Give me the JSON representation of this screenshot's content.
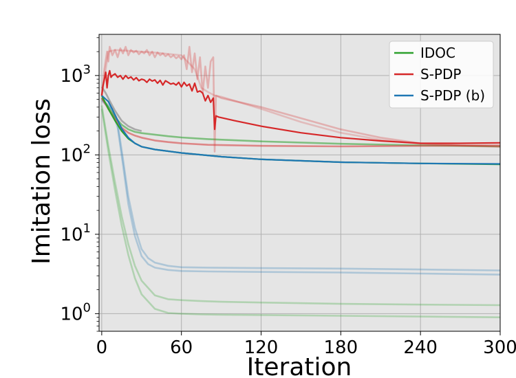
{
  "chart_data": {
    "type": "line",
    "title": "",
    "xlabel": "Iteration",
    "ylabel": "Imitation loss",
    "xlim": [
      -2,
      300
    ],
    "ylim": [
      0.6,
      3300
    ],
    "yscale": "log",
    "grid": true,
    "legend_placement": "top-right",
    "xticks": [
      {
        "value": 0,
        "label": "0"
      },
      {
        "value": 60,
        "label": "60"
      },
      {
        "value": 120,
        "label": "120"
      },
      {
        "value": 180,
        "label": "180"
      },
      {
        "value": 240,
        "label": "240"
      },
      {
        "value": 300,
        "label": "300"
      }
    ],
    "yticks": [
      {
        "value": 1,
        "base": "10",
        "exp": "0"
      },
      {
        "value": 10,
        "base": "10",
        "exp": "1"
      },
      {
        "value": 100,
        "base": "10",
        "exp": "2"
      },
      {
        "value": 1000,
        "base": "10",
        "exp": "3"
      }
    ],
    "legend": [
      {
        "label": "IDOC",
        "color": "#2ca02c"
      },
      {
        "label": "S-PDP",
        "color": "#d62728"
      },
      {
        "label": "S-PDP (b)",
        "color": "#1f77b4"
      }
    ],
    "series": [
      {
        "name": "IDOC",
        "color": "#2ca02c",
        "opacity": 1.0,
        "x": [
          0,
          5,
          10,
          15,
          20,
          25,
          30,
          40,
          60,
          90,
          120,
          180,
          240,
          300
        ],
        "y": [
          560,
          380,
          270,
          200,
          160,
          140,
          127,
          117,
          106,
          95,
          88,
          81,
          78,
          76
        ]
      },
      {
        "name": "S-PDP (b)",
        "color": "#1f77b4",
        "opacity": 1.0,
        "x": [
          0,
          5,
          10,
          15,
          20,
          25,
          30,
          40,
          60,
          90,
          120,
          180,
          240,
          300
        ],
        "y": [
          560,
          470,
          320,
          215,
          165,
          140,
          127,
          117,
          106,
          95,
          88,
          81,
          78,
          77
        ]
      },
      {
        "name": "S-PDP",
        "color": "#d62728",
        "opacity": 1.0,
        "x": [
          0,
          1,
          2,
          3,
          4,
          5,
          6,
          7,
          8,
          10,
          12,
          14,
          16,
          18,
          20,
          22,
          24,
          26,
          28,
          30,
          32,
          34,
          36,
          38,
          40,
          42,
          44,
          46,
          48,
          50,
          52,
          54,
          56,
          58,
          60,
          62,
          64,
          66,
          68,
          70,
          72,
          74,
          76,
          78,
          80,
          82,
          84,
          85,
          86,
          88,
          100,
          120,
          150,
          180,
          210,
          240,
          270,
          300
        ],
        "y": [
          560,
          750,
          900,
          1100,
          700,
          1000,
          1150,
          950,
          1000,
          1050,
          950,
          1000,
          900,
          1000,
          920,
          960,
          880,
          940,
          860,
          900,
          880,
          820,
          900,
          850,
          880,
          800,
          870,
          760,
          860,
          820,
          780,
          800,
          760,
          820,
          720,
          820,
          740,
          780,
          640,
          800,
          620,
          640,
          600,
          480,
          560,
          460,
          520,
          210,
          310,
          300,
          270,
          230,
          190,
          165,
          150,
          140,
          140,
          142
        ]
      },
      {
        "color": "#2ca02c",
        "opacity": 0.28,
        "x": [
          0,
          5,
          10,
          15,
          20,
          25,
          30,
          40,
          50,
          60,
          75,
          90,
          120,
          180,
          240,
          300
        ],
        "y": [
          420,
          130,
          45,
          17,
          7.5,
          4.0,
          2.6,
          1.7,
          1.52,
          1.48,
          1.44,
          1.41,
          1.38,
          1.33,
          1.3,
          1.28
        ]
      },
      {
        "color": "#2ca02c",
        "opacity": 0.28,
        "x": [
          0,
          5,
          10,
          15,
          20,
          25,
          30,
          40,
          50,
          60,
          75,
          90,
          120,
          180,
          240,
          300
        ],
        "y": [
          380,
          110,
          36,
          13,
          5.5,
          2.8,
          1.75,
          1.15,
          1.02,
          1.0,
          0.98,
          0.97,
          0.96,
          0.94,
          0.92,
          0.9
        ]
      },
      {
        "color": "#1f77b4",
        "opacity": 0.28,
        "x": [
          0,
          8,
          12,
          16,
          20,
          25,
          30,
          35,
          40,
          50,
          60,
          80,
          120,
          180,
          240,
          300
        ],
        "y": [
          500,
          380,
          250,
          90,
          30,
          12,
          6.5,
          5.0,
          4.4,
          4.0,
          3.85,
          3.8,
          3.75,
          3.7,
          3.6,
          3.5
        ]
      },
      {
        "color": "#1f77b4",
        "opacity": 0.28,
        "x": [
          0,
          8,
          12,
          16,
          20,
          25,
          30,
          35,
          40,
          50,
          60,
          80,
          120,
          180,
          240,
          300
        ],
        "y": [
          480,
          360,
          220,
          75,
          24,
          9.5,
          5.3,
          4.2,
          3.8,
          3.55,
          3.45,
          3.4,
          3.35,
          3.3,
          3.2,
          3.1
        ]
      },
      {
        "color": "#2ca02c",
        "opacity": 0.55,
        "x": [
          0,
          5,
          10,
          15,
          20,
          25,
          30,
          40,
          50,
          60,
          80,
          120,
          180,
          240,
          300
        ],
        "y": [
          520,
          400,
          300,
          240,
          210,
          195,
          188,
          180,
          172,
          166,
          158,
          148,
          138,
          132,
          128
        ]
      },
      {
        "color": "#d62728",
        "opacity": 0.5,
        "x": [
          0,
          5,
          10,
          15,
          20,
          25,
          30,
          40,
          50,
          60,
          80,
          120,
          180,
          240,
          300
        ],
        "y": [
          520,
          380,
          280,
          220,
          190,
          175,
          165,
          152,
          145,
          140,
          134,
          130,
          128,
          130,
          132
        ]
      },
      {
        "color": "#7f7f7f",
        "opacity": 0.6,
        "x": [
          0,
          3,
          6,
          10,
          15,
          20,
          25,
          30
        ],
        "y": [
          720,
          600,
          480,
          360,
          270,
          230,
          210,
          200
        ]
      },
      {
        "color": "#d62728",
        "opacity": 0.28,
        "x": [
          0,
          2,
          4,
          5,
          6,
          8,
          10,
          12,
          14,
          16,
          18,
          20,
          22,
          24,
          26,
          28,
          30,
          32,
          34,
          36,
          38,
          40,
          42,
          44,
          46,
          48,
          50,
          52,
          54,
          56,
          58,
          60,
          62,
          64,
          66,
          68,
          70,
          72,
          74,
          76,
          78,
          80,
          82,
          84,
          85,
          86,
          90,
          120,
          150,
          180,
          210,
          240,
          270,
          300
        ],
        "y": [
          560,
          1200,
          2000,
          1500,
          2300,
          1800,
          2100,
          1700,
          2200,
          1900,
          2300,
          1800,
          2100,
          1950,
          2050,
          1850,
          2000,
          1900,
          2100,
          1800,
          2000,
          1700,
          1950,
          1800,
          1900,
          1750,
          1850,
          1700,
          1800,
          1650,
          1750,
          1600,
          1800,
          1200,
          2300,
          1100,
          1900,
          900,
          1700,
          600,
          1300,
          700,
          1500,
          1700,
          110,
          560,
          520,
          400,
          290,
          210,
          165,
          140,
          132,
          128
        ]
      },
      {
        "color": "#d62728",
        "opacity": 0.22,
        "x": [
          0,
          5,
          10,
          20,
          40,
          60,
          70,
          75,
          80,
          85,
          90,
          120,
          150,
          180,
          210,
          240,
          270,
          300
        ],
        "y": [
          560,
          2000,
          2100,
          2050,
          1950,
          1800,
          1200,
          700,
          620,
          560,
          540,
          380,
          260,
          190,
          155,
          138,
          130,
          126
        ]
      }
    ]
  }
}
